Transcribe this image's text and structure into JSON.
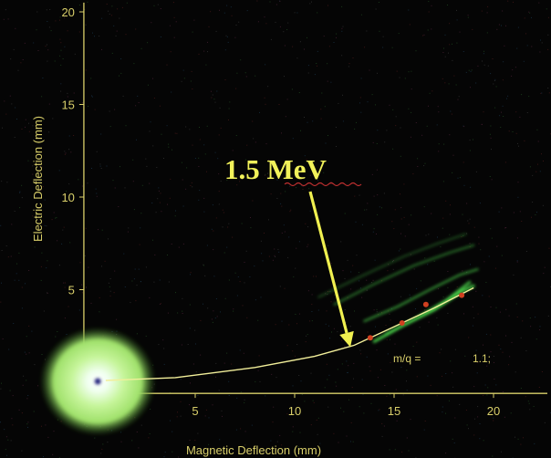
{
  "chart_data": {
    "type": "scatter",
    "title": "",
    "xlabel": "Magnetic Deflection (mm)",
    "ylabel": "Electric Deflection (mm)",
    "xlim": [
      0,
      23.5
    ],
    "ylim": [
      -1,
      20.5
    ],
    "x_ticks": [
      "5",
      "10",
      "15",
      "20"
    ],
    "y_ticks": [
      "0",
      "5",
      "10",
      "15",
      "20"
    ],
    "grid": false,
    "annotation": "1.5 MeV",
    "annotation_point": {
      "x": 12.8,
      "y": 1.9
    },
    "mq_label": "m/q =",
    "mq_value": "1.1;",
    "parabola": [
      [
        0.5,
        0.1
      ],
      [
        4,
        0.25
      ],
      [
        8,
        0.8
      ],
      [
        11,
        1.4
      ],
      [
        13,
        2.0
      ],
      [
        15,
        3.0
      ],
      [
        17,
        4.0
      ],
      [
        19,
        5.1
      ]
    ],
    "markers": [
      [
        13.8,
        2.4
      ],
      [
        15.4,
        3.2
      ],
      [
        16.6,
        4.2
      ],
      [
        18.4,
        4.7
      ]
    ],
    "colors": {
      "axes": "#d9cf6a",
      "arrow": "#f0f050",
      "trace": "#4cd94c",
      "beam": "#b8f080",
      "marker": "#d04020"
    }
  }
}
